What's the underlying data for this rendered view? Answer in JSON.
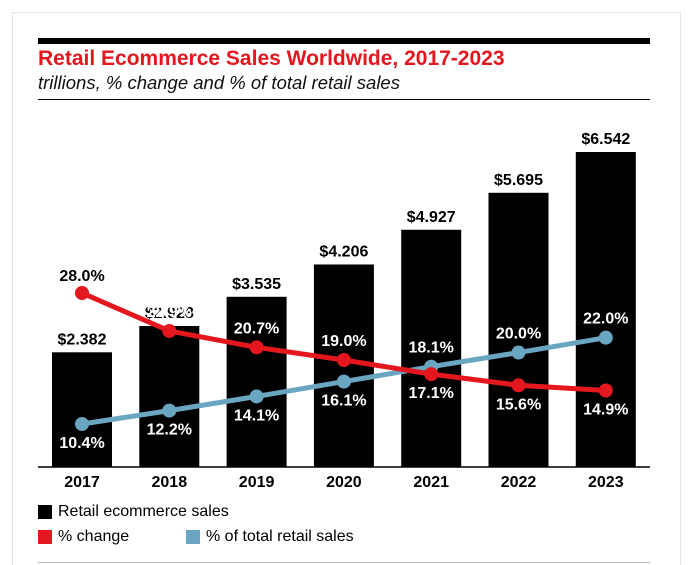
{
  "chart_data": {
    "type": "bar",
    "title": "Retail Ecommerce Sales Worldwide, 2017-2023",
    "subtitle": "trillions, % change and % of total retail sales",
    "categories": [
      "2017",
      "2018",
      "2019",
      "2020",
      "2021",
      "2022",
      "2023"
    ],
    "series": [
      {
        "name": "Retail ecommerce sales",
        "kind": "bar",
        "values": [
          2.382,
          2.928,
          3.535,
          4.206,
          4.927,
          5.695,
          6.542
        ],
        "labels": [
          "$2.382",
          "$2.928",
          "$3.535",
          "$4.206",
          "$4.927",
          "$5.695",
          "$6.542"
        ],
        "color": "#000000"
      },
      {
        "name": "% change",
        "kind": "line",
        "values": [
          28.0,
          22.9,
          20.7,
          19.0,
          17.1,
          15.6,
          14.9
        ],
        "labels": [
          "28.0%",
          "22.9%",
          "20.7%",
          "19.0%",
          "17.1%",
          "15.6%",
          "14.9%"
        ],
        "color": "#e4161e"
      },
      {
        "name": "% of total retail sales",
        "kind": "line",
        "values": [
          10.4,
          12.2,
          14.1,
          16.1,
          18.1,
          20.0,
          22.0
        ],
        "labels": [
          "10.4%",
          "12.2%",
          "14.1%",
          "16.1%",
          "18.1%",
          "20.0%",
          "22.0%"
        ],
        "color": "#6aa6c2"
      }
    ],
    "xlabel": "",
    "ylabel": "",
    "legend": "bottom-left",
    "grid": false
  },
  "legend": {
    "sales": "Retail ecommerce sales",
    "change": "% change",
    "share": "% of total retail sales",
    "sales_color": "#000000",
    "change_color": "#e4161e",
    "share_color": "#6aa6c2"
  }
}
